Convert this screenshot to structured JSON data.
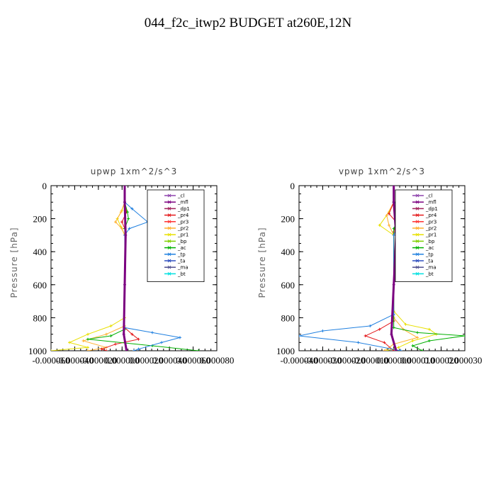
{
  "title": "044_f2c_itwp2  BUDGET at260E,12N",
  "legend_items": [
    {
      "label": "_cl",
      "color": "#8e44ad"
    },
    {
      "label": "_mfl",
      "color": "#7b0080"
    },
    {
      "label": "_dp1",
      "color": "#a0205a"
    },
    {
      "label": "_pr4",
      "color": "#e41a1c"
    },
    {
      "label": "_pr3",
      "color": "#ff3030"
    },
    {
      "label": "_pr2",
      "color": "#ffb030"
    },
    {
      "label": "_pr1",
      "color": "#e8e000"
    },
    {
      "label": "_bp",
      "color": "#7fd000"
    },
    {
      "label": "_ac",
      "color": "#00b000"
    },
    {
      "label": "_tp",
      "color": "#2080e0"
    },
    {
      "label": "_ta",
      "color": "#3050c0"
    },
    {
      "label": "_ma",
      "color": "#505090"
    },
    {
      "label": "_bt",
      "color": "#00e0e0"
    }
  ],
  "chart_data": [
    {
      "type": "line",
      "title": "upwp   1xm^2/s^3",
      "ylabel": "Pressure [hPa]",
      "xlim": [
        -8e-05,
        0.0001
      ],
      "ylim": [
        1000,
        0
      ],
      "y_ticks": [
        0,
        200,
        400,
        600,
        800,
        1000
      ],
      "y_tick_labels": [
        "0",
        "200",
        "400",
        "600",
        "800",
        "1000"
      ],
      "x_tick_labels": [
        "-0.000060",
        "-0.000040",
        "-0.000020",
        "0.000000",
        "0.000020",
        "0.000040",
        "0.000060",
        "0.000080"
      ],
      "legend_position": "top-right",
      "series": [
        {
          "name": "_pr1",
          "color": "#e8e000",
          "points": [
            [
              0,
              100
            ],
            [
              -3e-06,
              150
            ],
            [
              -8e-06,
              200
            ],
            [
              -4e-06,
              250
            ],
            [
              0,
              300
            ],
            [
              0,
              800
            ],
            [
              -1.5e-05,
              850
            ],
            [
              -4e-05,
              900
            ],
            [
              -6e-05,
              950
            ],
            [
              -4e-05,
              980
            ],
            [
              -8e-05,
              1000
            ]
          ]
        },
        {
          "name": "_pr2",
          "color": "#ffb030",
          "points": [
            [
              0,
              100
            ],
            [
              -4e-06,
              160
            ],
            [
              -1e-05,
              220
            ],
            [
              -3e-06,
              260
            ],
            [
              0,
              300
            ],
            [
              0,
              850
            ],
            [
              -2e-05,
              900
            ],
            [
              -4.5e-05,
              940
            ],
            [
              -2e-05,
              980
            ],
            [
              -4e-05,
              1000
            ]
          ]
        },
        {
          "name": "_pr4",
          "color": "#e41a1c",
          "points": [
            [
              0,
              100
            ],
            [
              2e-06,
              160
            ],
            [
              -3e-06,
              220
            ],
            [
              0,
              260
            ],
            [
              0,
              860
            ],
            [
              8e-06,
              900
            ],
            [
              1.5e-05,
              930
            ],
            [
              -1e-05,
              960
            ],
            [
              -2.5e-05,
              990
            ],
            [
              -2e-05,
              1000
            ]
          ]
        },
        {
          "name": "_ac",
          "color": "#00b000",
          "points": [
            [
              0,
              100
            ],
            [
              3e-06,
              160
            ],
            [
              4e-06,
              200
            ],
            [
              0,
              260
            ],
            [
              0,
              870
            ],
            [
              -1.5e-05,
              910
            ],
            [
              -4e-05,
              930
            ],
            [
              3e-05,
              970
            ],
            [
              8e-05,
              1000
            ]
          ]
        },
        {
          "name": "_tp",
          "color": "#2080e0",
          "points": [
            [
              0,
              100
            ],
            [
              8e-06,
              140
            ],
            [
              2.5e-05,
              220
            ],
            [
              5e-06,
              260
            ],
            [
              0,
              300
            ],
            [
              0,
              860
            ],
            [
              3e-05,
              890
            ],
            [
              6e-05,
              920
            ],
            [
              4e-05,
              950
            ],
            [
              1.5e-05,
              990
            ],
            [
              1e-05,
              1000
            ]
          ]
        },
        {
          "name": "_mfl",
          "color": "#7b0080",
          "points": [
            [
              0,
              0
            ],
            [
              0,
              100
            ],
            [
              1e-06,
              300
            ],
            [
              0,
              600
            ],
            [
              -1e-06,
              900
            ],
            [
              2e-06,
              1000
            ]
          ]
        }
      ]
    },
    {
      "type": "line",
      "title": "vpwp   1xm^2/s^3",
      "ylabel": "Pressure [hPa]",
      "xlim": [
        -4e-05,
        3e-05
      ],
      "ylim": [
        1000,
        0
      ],
      "y_ticks": [
        0,
        200,
        400,
        600,
        800,
        1000
      ],
      "y_tick_labels": [
        "0",
        "200",
        "400",
        "600",
        "800",
        "1000"
      ],
      "x_tick_labels": [
        "-0.000040",
        "-0.000030",
        "-0.000020",
        "-0.000010",
        "0.000000",
        "0.000010",
        "0.000020",
        "0.000030"
      ],
      "legend_position": "top-right",
      "series": [
        {
          "name": "_pr1",
          "color": "#e8e000",
          "points": [
            [
              0,
              100
            ],
            [
              -2e-06,
              160
            ],
            [
              -6e-06,
              240
            ],
            [
              0,
              300
            ],
            [
              0,
              760
            ],
            [
              5e-06,
              840
            ],
            [
              1.5e-05,
              870
            ],
            [
              1.8e-05,
              900
            ],
            [
              8e-06,
              940
            ],
            [
              2e-06,
              980
            ],
            [
              -3e-06,
              1000
            ]
          ]
        },
        {
          "name": "_pr2",
          "color": "#ffb030",
          "points": [
            [
              0,
              100
            ],
            [
              -3e-06,
              180
            ],
            [
              -2e-06,
              240
            ],
            [
              0,
              300
            ],
            [
              0,
              800
            ],
            [
              4e-06,
              870
            ],
            [
              1e-05,
              920
            ],
            [
              0,
              960
            ],
            [
              -4e-06,
              1000
            ]
          ]
        },
        {
          "name": "_pr4",
          "color": "#e41a1c",
          "points": [
            [
              0,
              100
            ],
            [
              -2e-06,
              170
            ],
            [
              1e-06,
              220
            ],
            [
              0,
              280
            ],
            [
              0,
              820
            ],
            [
              -6e-06,
              870
            ],
            [
              -1.2e-05,
              910
            ],
            [
              -4e-06,
              950
            ],
            [
              0,
              1000
            ]
          ]
        },
        {
          "name": "_ac",
          "color": "#00b000",
          "points": [
            [
              0,
              100
            ],
            [
              4e-06,
              150
            ],
            [
              2e-06,
              200
            ],
            [
              0,
              260
            ],
            [
              0,
              860
            ],
            [
              1e-05,
              890
            ],
            [
              3e-05,
              910
            ],
            [
              1.5e-05,
              940
            ],
            [
              8e-06,
              970
            ],
            [
              1.2e-05,
              1000
            ]
          ]
        },
        {
          "name": "_tp",
          "color": "#2080e0",
          "points": [
            [
              0,
              100
            ],
            [
              4e-06,
              140
            ],
            [
              8e-06,
              190
            ],
            [
              2e-06,
              240
            ],
            [
              0,
              300
            ],
            [
              0,
              780
            ],
            [
              -1e-05,
              850
            ],
            [
              -3e-05,
              880
            ],
            [
              -4e-05,
              910
            ],
            [
              -1.5e-05,
              950
            ],
            [
              3e-06,
              1000
            ]
          ]
        },
        {
          "name": "_mfl",
          "color": "#7b0080",
          "points": [
            [
              0,
              0
            ],
            [
              0,
              100
            ],
            [
              1e-06,
              300
            ],
            [
              0,
              600
            ],
            [
              -1e-06,
              900
            ],
            [
              1e-06,
              1000
            ]
          ]
        }
      ]
    }
  ]
}
